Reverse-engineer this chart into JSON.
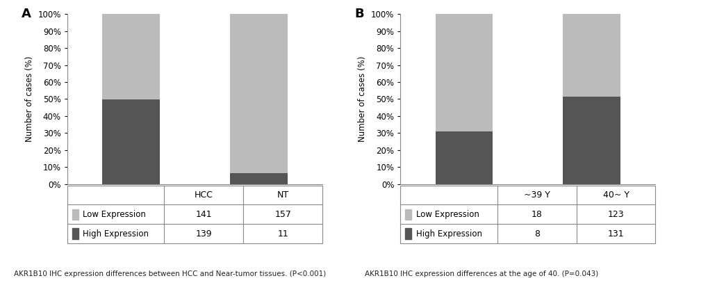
{
  "panel_A": {
    "label": "A",
    "categories": [
      "HCC",
      "NT"
    ],
    "low_pct": [
      50.36,
      93.45
    ],
    "high_pct": [
      49.64,
      6.55
    ],
    "table_rows": [
      {
        "label": "Low Expression",
        "values": [
          "141",
          "157"
        ],
        "color": "#bbbbbb"
      },
      {
        "label": "High Expression",
        "values": [
          "139",
          "11"
        ],
        "color": "#555555"
      }
    ],
    "caption": "AKR1B10 IHC expression differences between HCC and Near-tumor tissues. (P<0.001)"
  },
  "panel_B": {
    "label": "B",
    "categories": [
      "~39 Y",
      "40~ Y"
    ],
    "low_pct": [
      69.23,
      48.43
    ],
    "high_pct": [
      30.77,
      51.57
    ],
    "table_rows": [
      {
        "label": "Low Expression",
        "values": [
          "18",
          "123"
        ],
        "color": "#bbbbbb"
      },
      {
        "label": "High Expression",
        "values": [
          "8",
          "131"
        ],
        "color": "#555555"
      }
    ],
    "caption": "AKR1B10 IHC expression differences at the age of 40. (P=0.043)"
  },
  "color_high": "#555555",
  "color_low": "#bbbbbb",
  "ylabel": "Number of cases (%)",
  "ytick_labels": [
    "0%",
    "10%",
    "20%",
    "30%",
    "40%",
    "50%",
    "60%",
    "70%",
    "80%",
    "90%",
    "100%"
  ],
  "yticks": [
    0,
    10,
    20,
    30,
    40,
    50,
    60,
    70,
    80,
    90,
    100
  ],
  "bar_width": 0.45,
  "background_color": "#ffffff"
}
